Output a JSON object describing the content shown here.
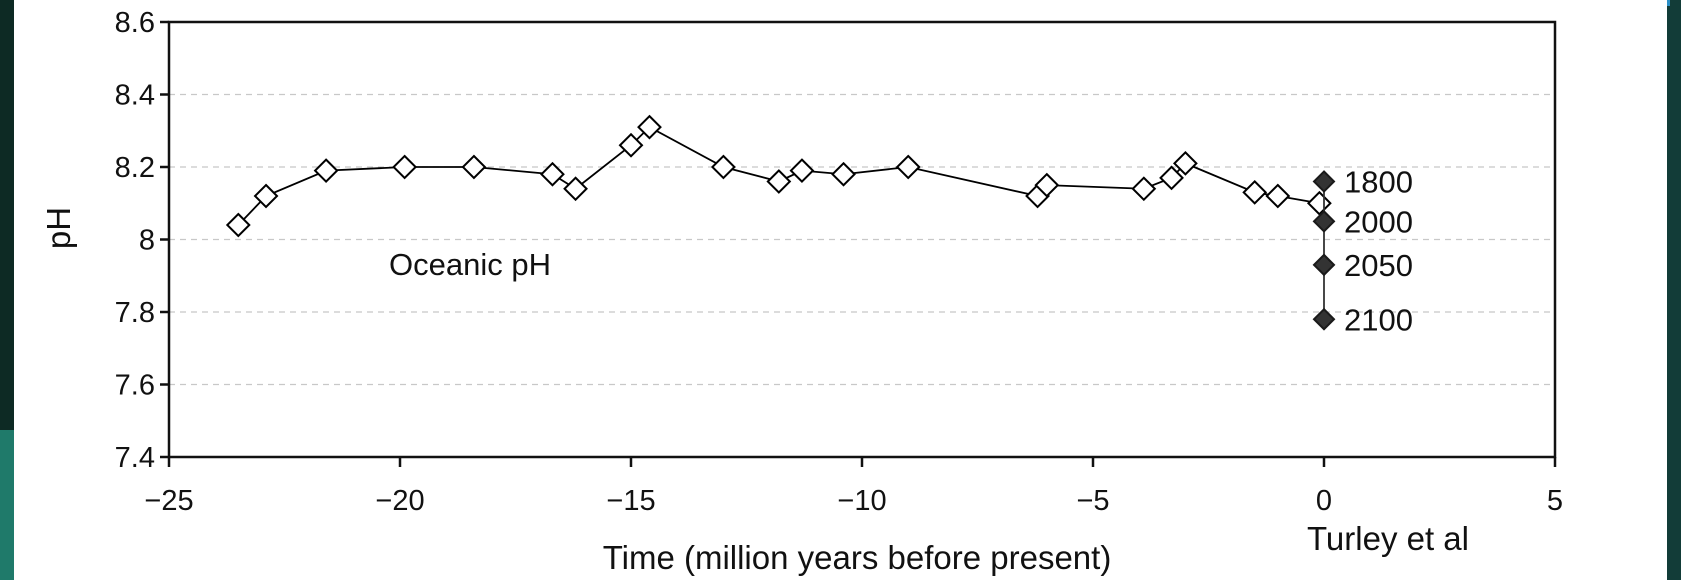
{
  "slide": {
    "credit": "Turley et al"
  },
  "chart_data": {
    "type": "scatter",
    "xlabel": "Time (million years before present)",
    "ylabel": "pH",
    "xlim": [
      -25,
      5
    ],
    "ylim": [
      7.4,
      8.6
    ],
    "x_ticks": [
      -25,
      -20,
      -15,
      -10,
      -5,
      0,
      5
    ],
    "x_tick_labels": [
      "−25",
      "−20",
      "−15",
      "−10",
      "−5",
      "0",
      "5"
    ],
    "y_ticks": [
      7.4,
      7.6,
      7.8,
      8.0,
      8.2,
      8.4,
      8.6
    ],
    "y_tick_labels": [
      "7.4",
      "7.6",
      "7.8",
      "8",
      "8.2",
      "8.4",
      "8.6"
    ],
    "grid": "horizontal dashed",
    "annotation": "Oceanic pH",
    "series": [
      {
        "name": "Oceanic pH",
        "marker": "open-diamond",
        "line": true,
        "color": "#000000",
        "x": [
          -23.5,
          -22.9,
          -21.6,
          -19.9,
          -18.4,
          -16.7,
          -16.2,
          -15.0,
          -14.6,
          -13.0,
          -11.8,
          -11.3,
          -10.4,
          -9.0,
          -6.2,
          -6.0,
          -3.9,
          -3.3,
          -3.0,
          -1.5,
          -1.0,
          -0.1
        ],
        "y": [
          8.04,
          8.12,
          8.19,
          8.2,
          8.2,
          8.18,
          8.14,
          8.26,
          8.31,
          8.2,
          8.16,
          8.19,
          8.18,
          8.2,
          8.12,
          8.15,
          8.14,
          8.17,
          8.21,
          8.13,
          8.12,
          8.1
        ]
      },
      {
        "marker": "filled-diamond",
        "line": true,
        "color": "#333333",
        "x": [
          0,
          0,
          0,
          0
        ],
        "y": [
          8.16,
          8.05,
          7.93,
          7.78
        ],
        "labels": [
          "1800",
          "2000",
          "2050",
          "2100"
        ]
      }
    ]
  }
}
